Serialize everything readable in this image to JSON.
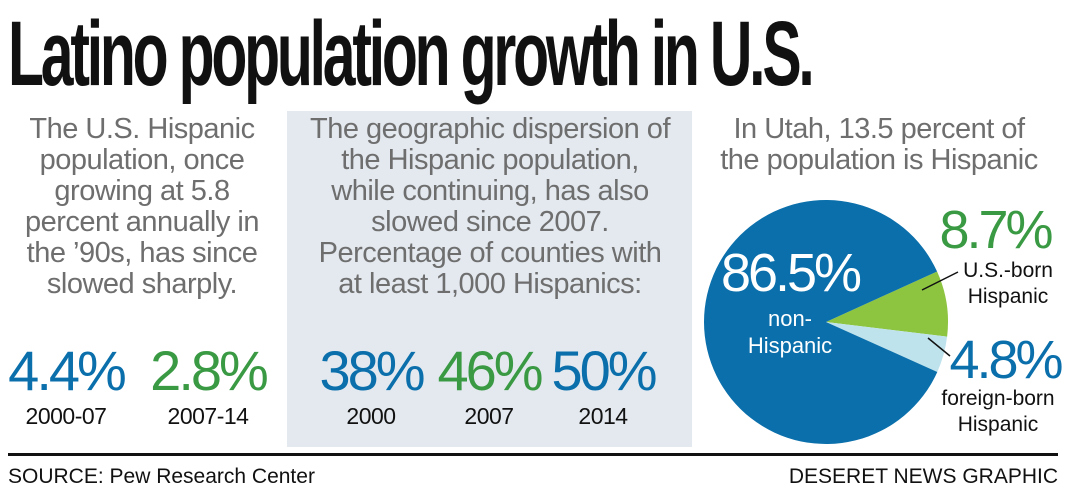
{
  "title": "Latino population growth in U.S.",
  "colors": {
    "blue": "#0a6fab",
    "green": "#8dc541",
    "green_text": "#3a9a44",
    "light_blue": "#bfe3ec",
    "gray_text": "#6e6e6e",
    "panel_bg": "#e3e9ef"
  },
  "growth": {
    "description": [
      "The U.S. Hispanic",
      "population, once",
      "growing at 5.8",
      "percent annually in",
      "the ’90s, has since",
      "slowed sharply."
    ],
    "stats": [
      {
        "value": "4.4%",
        "period": "2000-07"
      },
      {
        "value": "2.8%",
        "period": "2007-14"
      }
    ]
  },
  "dispersion": {
    "description": [
      "The geographic dispersion of",
      "the Hispanic population,",
      "while continuing, has also",
      "slowed since 2007.",
      "Percentage of counties with",
      "at least 1,000 Hispanics:"
    ],
    "stats": [
      {
        "value": "38%",
        "year": "2000"
      },
      {
        "value": "46%",
        "year": "2007"
      },
      {
        "value": "50%",
        "year": "2014"
      }
    ]
  },
  "utah": {
    "heading": [
      "In Utah, 13.5 percent of",
      "the population is Hispanic"
    ]
  },
  "chart_data": {
    "type": "pie",
    "title": "In Utah, 13.5 percent of the population is Hispanic",
    "slices": [
      {
        "value_label": "86.5%",
        "value": 86.5,
        "label": [
          "non-",
          "Hispanic"
        ],
        "color": "#0a6fab"
      },
      {
        "value_label": "8.7%",
        "value": 8.7,
        "label": [
          "U.S.-born",
          "Hispanic"
        ],
        "color": "#8dc541"
      },
      {
        "value_label": "4.8%",
        "value": 4.8,
        "label": [
          "foreign-born",
          "Hispanic"
        ],
        "color": "#bfe3ec"
      }
    ]
  },
  "footer": {
    "source": "SOURCE: Pew Research Center",
    "credit": "DESERET NEWS GRAPHIC"
  }
}
